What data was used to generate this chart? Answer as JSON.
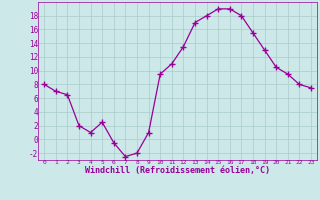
{
  "x": [
    0,
    1,
    2,
    3,
    4,
    5,
    6,
    7,
    8,
    9,
    10,
    11,
    12,
    13,
    14,
    15,
    16,
    17,
    18,
    19,
    20,
    21,
    22,
    23
  ],
  "y": [
    8,
    7,
    6.5,
    2,
    1,
    2.5,
    -0.5,
    -2.5,
    -2,
    1,
    9.5,
    11,
    13.5,
    17,
    18,
    19,
    19,
    18,
    15.5,
    13,
    10.5,
    9.5,
    8,
    7.5
  ],
  "line_color": "#990099",
  "marker": "+",
  "marker_size": 4,
  "bg_color": "#cce8e8",
  "grid_color": "#aacccc",
  "xlabel": "Windchill (Refroidissement éolien,°C)",
  "xlabel_color": "#990099",
  "tick_color": "#990099",
  "ylim": [
    -3,
    20
  ],
  "yticks": [
    -2,
    0,
    2,
    4,
    6,
    8,
    10,
    12,
    14,
    16,
    18
  ],
  "xticks": [
    0,
    1,
    2,
    3,
    4,
    5,
    6,
    7,
    8,
    9,
    10,
    11,
    12,
    13,
    14,
    15,
    16,
    17,
    18,
    19,
    20,
    21,
    22,
    23
  ],
  "font_family": "monospace"
}
